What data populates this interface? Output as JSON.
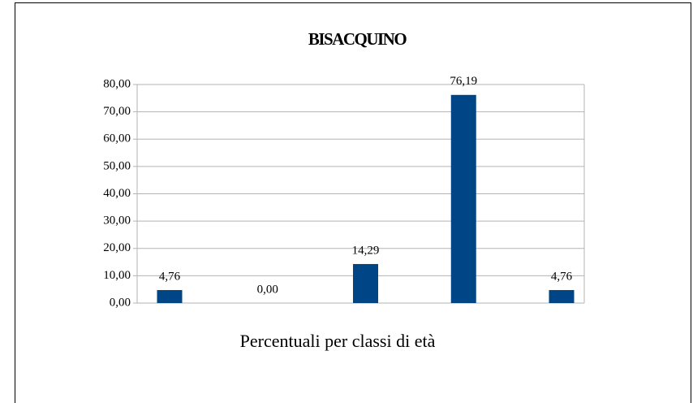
{
  "chart_data": {
    "type": "bar",
    "title": "BISACQUINO",
    "x_label": "Percentuali per classi di età",
    "categories": [
      null,
      null,
      null,
      null,
      null
    ],
    "values": [
      4.76,
      0,
      14.29,
      76.19,
      4.76
    ],
    "value_labels": [
      "4,76",
      "0,00",
      "14,29",
      "76,19",
      "4,76"
    ],
    "color": "#004586",
    "ylim": [
      0,
      80
    ],
    "yticks": [
      {
        "value": 0,
        "label": "0,00"
      },
      {
        "value": 10,
        "label": "10,00"
      },
      {
        "value": 20,
        "label": "20,00"
      },
      {
        "value": 30,
        "label": "30,00"
      },
      {
        "value": 40,
        "label": "40,00"
      },
      {
        "value": 50,
        "label": "50,00"
      },
      {
        "value": 60,
        "label": "60,00"
      },
      {
        "value": 70,
        "label": "70,00"
      },
      {
        "value": 80,
        "label": "80,00"
      }
    ],
    "grid": true
  }
}
